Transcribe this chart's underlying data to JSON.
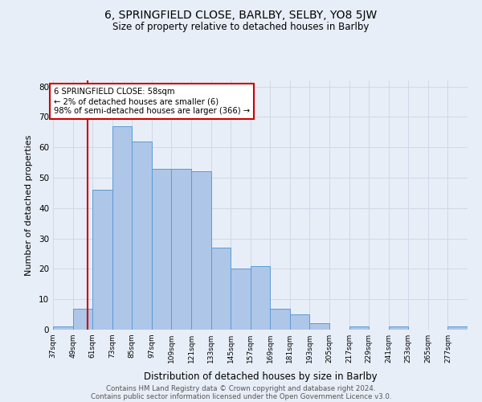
{
  "title": "6, SPRINGFIELD CLOSE, BARLBY, SELBY, YO8 5JW",
  "subtitle": "Size of property relative to detached houses in Barlby",
  "xlabel": "Distribution of detached houses by size in Barlby",
  "ylabel": "Number of detached properties",
  "bins": [
    37,
    49,
    61,
    73,
    85,
    97,
    109,
    121,
    133,
    145,
    157,
    169,
    181,
    193,
    205,
    217,
    229,
    241,
    253,
    265,
    277
  ],
  "counts": [
    1,
    7,
    46,
    67,
    62,
    53,
    53,
    52,
    27,
    20,
    21,
    7,
    5,
    2,
    0,
    1,
    0,
    1,
    0,
    0,
    1
  ],
  "bar_color": "#aec6e8",
  "bar_edge_color": "#5b9bd5",
  "grid_color": "#d0d8e8",
  "bg_color": "#e8eef7",
  "vline_x": 58,
  "vline_color": "#cc0000",
  "annotation_text": "6 SPRINGFIELD CLOSE: 58sqm\n← 2% of detached houses are smaller (6)\n98% of semi-detached houses are larger (366) →",
  "annotation_box_color": "#ffffff",
  "annotation_box_edge": "#cc0000",
  "ylim": [
    0,
    82
  ],
  "yticks": [
    0,
    10,
    20,
    30,
    40,
    50,
    60,
    70,
    80
  ],
  "tick_labels": [
    "37sqm",
    "49sqm",
    "61sqm",
    "73sqm",
    "85sqm",
    "97sqm",
    "109sqm",
    "121sqm",
    "133sqm",
    "145sqm",
    "157sqm",
    "169sqm",
    "181sqm",
    "193sqm",
    "205sqm",
    "217sqm",
    "229sqm",
    "241sqm",
    "253sqm",
    "265sqm",
    "277sqm"
  ],
  "footer1": "Contains HM Land Registry data © Crown copyright and database right 2024.",
  "footer2": "Contains public sector information licensed under the Open Government Licence v3.0."
}
